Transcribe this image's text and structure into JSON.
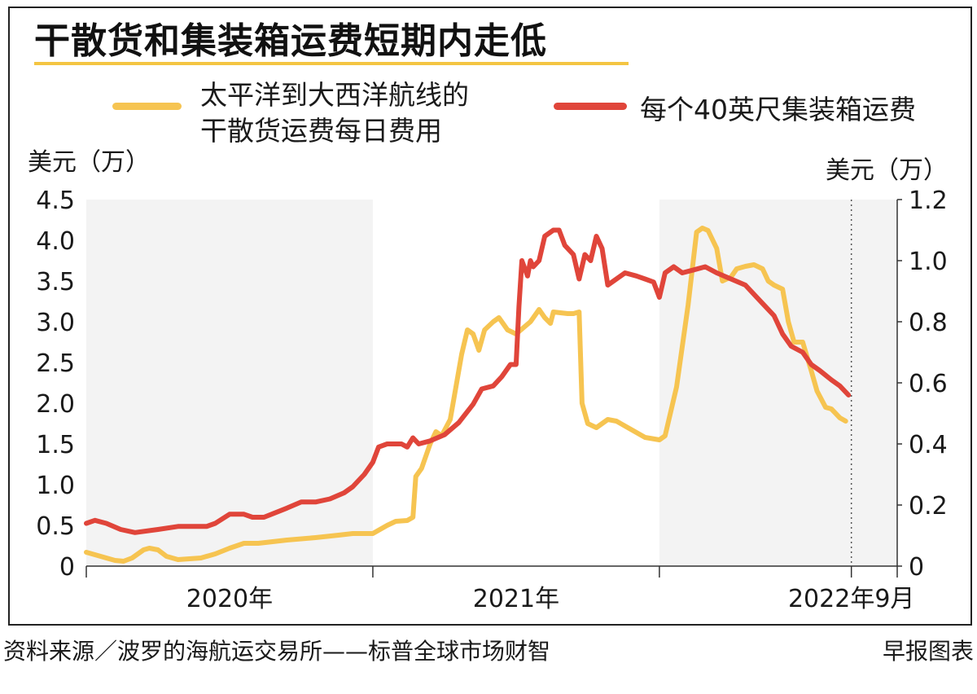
{
  "title": "干散货和集装箱运费短期内走低",
  "legend": {
    "bulk_line1": "太平洋到大西洋航线的",
    "bulk_line2": "干散货运费每日费用",
    "container": "每个40英尺集装箱运费",
    "bulk_color": "#f6c451",
    "container_color": "#e0453a"
  },
  "footer": {
    "source": "资料来源／波罗的海航运交易所——标普全球市场财智",
    "credit": "早报图表"
  },
  "chart_data": {
    "type": "line",
    "left_axis": {
      "unit": "美元（万）",
      "min": 0,
      "max": 4.5,
      "ticks": [
        "0",
        "0.5",
        "1.0",
        "1.5",
        "2.0",
        "2.5",
        "3.0",
        "3.5",
        "4.0",
        "4.5"
      ]
    },
    "right_axis": {
      "unit": "美元（万）",
      "min": 0,
      "max": 1.2,
      "ticks": [
        "0",
        "0.2",
        "0.4",
        "0.6",
        "0.8",
        "1.0",
        "1.2"
      ]
    },
    "x_axis": {
      "min": 2020.0,
      "max": 2022.83,
      "ticks": [
        2020.0,
        2021.0,
        2022.0,
        2022.67,
        2023.0
      ],
      "labels": [
        {
          "x": 2020.5,
          "text": "2020年"
        },
        {
          "x": 2021.5,
          "text": "2021年"
        },
        {
          "x": 2022.67,
          "text": "2022年9月"
        }
      ],
      "marker": 2022.67
    },
    "shaded_ranges": [
      [
        2020.0,
        2021.0
      ],
      [
        2022.0,
        2023.0
      ]
    ],
    "series": [
      {
        "name": "太平洋到大西洋航线的干散货运费每日费用",
        "axis": "left",
        "color": "#f6c451",
        "points": [
          [
            2020.0,
            0.17
          ],
          [
            2020.05,
            0.12
          ],
          [
            2020.1,
            0.07
          ],
          [
            2020.13,
            0.06
          ],
          [
            2020.16,
            0.1
          ],
          [
            2020.2,
            0.2
          ],
          [
            2020.22,
            0.22
          ],
          [
            2020.25,
            0.2
          ],
          [
            2020.28,
            0.12
          ],
          [
            2020.32,
            0.08
          ],
          [
            2020.4,
            0.1
          ],
          [
            2020.45,
            0.15
          ],
          [
            2020.5,
            0.22
          ],
          [
            2020.55,
            0.28
          ],
          [
            2020.6,
            0.28
          ],
          [
            2020.7,
            0.32
          ],
          [
            2020.8,
            0.35
          ],
          [
            2020.88,
            0.38
          ],
          [
            2020.93,
            0.4
          ],
          [
            2021.0,
            0.4
          ],
          [
            2021.05,
            0.5
          ],
          [
            2021.08,
            0.55
          ],
          [
            2021.12,
            0.56
          ],
          [
            2021.14,
            0.6
          ],
          [
            2021.15,
            1.1
          ],
          [
            2021.17,
            1.2
          ],
          [
            2021.2,
            1.5
          ],
          [
            2021.22,
            1.65
          ],
          [
            2021.24,
            1.6
          ],
          [
            2021.27,
            1.8
          ],
          [
            2021.29,
            2.2
          ],
          [
            2021.31,
            2.6
          ],
          [
            2021.33,
            2.9
          ],
          [
            2021.35,
            2.85
          ],
          [
            2021.37,
            2.65
          ],
          [
            2021.39,
            2.9
          ],
          [
            2021.42,
            3.0
          ],
          [
            2021.44,
            3.05
          ],
          [
            2021.47,
            2.9
          ],
          [
            2021.5,
            2.85
          ],
          [
            2021.55,
            3.0
          ],
          [
            2021.58,
            3.15
          ],
          [
            2021.6,
            3.05
          ],
          [
            2021.62,
            2.98
          ],
          [
            2021.63,
            3.12
          ],
          [
            2021.68,
            3.1
          ],
          [
            2021.7,
            3.1
          ],
          [
            2021.72,
            3.12
          ],
          [
            2021.73,
            2.0
          ],
          [
            2021.75,
            1.75
          ],
          [
            2021.78,
            1.7
          ],
          [
            2021.82,
            1.8
          ],
          [
            2021.85,
            1.78
          ],
          [
            2021.9,
            1.68
          ],
          [
            2021.95,
            1.58
          ],
          [
            2022.0,
            1.55
          ],
          [
            2022.02,
            1.6
          ],
          [
            2022.06,
            2.2
          ],
          [
            2022.1,
            3.2
          ],
          [
            2022.13,
            4.1
          ],
          [
            2022.15,
            4.15
          ],
          [
            2022.17,
            4.12
          ],
          [
            2022.2,
            3.9
          ],
          [
            2022.22,
            3.5
          ],
          [
            2022.25,
            3.55
          ],
          [
            2022.27,
            3.65
          ],
          [
            2022.3,
            3.68
          ],
          [
            2022.33,
            3.7
          ],
          [
            2022.36,
            3.65
          ],
          [
            2022.38,
            3.5
          ],
          [
            2022.4,
            3.45
          ],
          [
            2022.43,
            3.4
          ],
          [
            2022.45,
            3.0
          ],
          [
            2022.47,
            2.75
          ],
          [
            2022.5,
            2.75
          ],
          [
            2022.53,
            2.4
          ],
          [
            2022.55,
            2.15
          ],
          [
            2022.58,
            1.95
          ],
          [
            2022.6,
            1.93
          ],
          [
            2022.63,
            1.82
          ],
          [
            2022.65,
            1.78
          ]
        ]
      },
      {
        "name": "每个40英尺集装箱运费",
        "axis": "right",
        "color": "#e0453a",
        "points": [
          [
            2020.0,
            0.14
          ],
          [
            2020.03,
            0.15
          ],
          [
            2020.07,
            0.14
          ],
          [
            2020.12,
            0.12
          ],
          [
            2020.17,
            0.11
          ],
          [
            2020.25,
            0.12
          ],
          [
            2020.32,
            0.13
          ],
          [
            2020.38,
            0.13
          ],
          [
            2020.42,
            0.13
          ],
          [
            2020.45,
            0.14
          ],
          [
            2020.5,
            0.17
          ],
          [
            2020.55,
            0.17
          ],
          [
            2020.58,
            0.16
          ],
          [
            2020.62,
            0.16
          ],
          [
            2020.7,
            0.19
          ],
          [
            2020.75,
            0.21
          ],
          [
            2020.8,
            0.21
          ],
          [
            2020.85,
            0.22
          ],
          [
            2020.9,
            0.24
          ],
          [
            2020.93,
            0.26
          ],
          [
            2020.95,
            0.28
          ],
          [
            2020.97,
            0.3
          ],
          [
            2021.0,
            0.34
          ],
          [
            2021.02,
            0.39
          ],
          [
            2021.05,
            0.4
          ],
          [
            2021.1,
            0.4
          ],
          [
            2021.12,
            0.39
          ],
          [
            2021.14,
            0.42
          ],
          [
            2021.16,
            0.4
          ],
          [
            2021.2,
            0.41
          ],
          [
            2021.25,
            0.43
          ],
          [
            2021.3,
            0.47
          ],
          [
            2021.35,
            0.53
          ],
          [
            2021.38,
            0.58
          ],
          [
            2021.42,
            0.59
          ],
          [
            2021.45,
            0.62
          ],
          [
            2021.48,
            0.66
          ],
          [
            2021.5,
            0.66
          ],
          [
            2021.51,
            0.85
          ],
          [
            2021.52,
            1.0
          ],
          [
            2021.54,
            0.95
          ],
          [
            2021.55,
            1.0
          ],
          [
            2021.56,
            0.98
          ],
          [
            2021.58,
            1.0
          ],
          [
            2021.6,
            1.08
          ],
          [
            2021.63,
            1.1
          ],
          [
            2021.65,
            1.1
          ],
          [
            2021.67,
            1.05
          ],
          [
            2021.7,
            1.02
          ],
          [
            2021.72,
            0.94
          ],
          [
            2021.74,
            1.02
          ],
          [
            2021.76,
            1.0
          ],
          [
            2021.78,
            1.08
          ],
          [
            2021.8,
            1.04
          ],
          [
            2021.82,
            0.92
          ],
          [
            2021.85,
            0.94
          ],
          [
            2021.88,
            0.96
          ],
          [
            2021.92,
            0.95
          ],
          [
            2021.95,
            0.94
          ],
          [
            2021.98,
            0.93
          ],
          [
            2022.0,
            0.88
          ],
          [
            2022.02,
            0.96
          ],
          [
            2022.05,
            0.98
          ],
          [
            2022.08,
            0.96
          ],
          [
            2022.12,
            0.97
          ],
          [
            2022.16,
            0.98
          ],
          [
            2022.2,
            0.96
          ],
          [
            2022.25,
            0.94
          ],
          [
            2022.3,
            0.92
          ],
          [
            2022.35,
            0.87
          ],
          [
            2022.4,
            0.82
          ],
          [
            2022.43,
            0.76
          ],
          [
            2022.46,
            0.72
          ],
          [
            2022.5,
            0.7
          ],
          [
            2022.53,
            0.66
          ],
          [
            2022.56,
            0.64
          ],
          [
            2022.6,
            0.61
          ],
          [
            2022.63,
            0.59
          ],
          [
            2022.66,
            0.56
          ]
        ]
      }
    ]
  }
}
